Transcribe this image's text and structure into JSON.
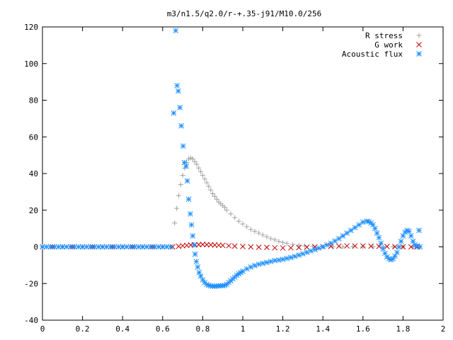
{
  "chart_data": {
    "type": "scatter",
    "title": "m3/n1.5/q2.0/r-+.35-j91/M10.0/256",
    "xlabel": "",
    "ylabel": "",
    "xlim": [
      0,
      2
    ],
    "ylim": [
      -40,
      120
    ],
    "x_ticks": [
      "0",
      "0.2",
      "0.4",
      "0.6",
      "0.8",
      "1",
      "1.2",
      "1.4",
      "1.6",
      "1.8",
      "2"
    ],
    "y_ticks": [
      "-40",
      "-20",
      "0",
      "20",
      "40",
      "60",
      "80",
      "100",
      "120"
    ],
    "legend_position": "top-right",
    "grid": false,
    "series": [
      {
        "name": "R stress",
        "marker": "+",
        "color": "#a0a0a0",
        "points": [
          [
            0.0,
            0
          ],
          [
            0.05,
            0
          ],
          [
            0.1,
            0
          ],
          [
            0.15,
            0
          ],
          [
            0.2,
            0
          ],
          [
            0.25,
            0
          ],
          [
            0.3,
            0
          ],
          [
            0.35,
            0
          ],
          [
            0.4,
            0
          ],
          [
            0.45,
            0
          ],
          [
            0.5,
            0
          ],
          [
            0.55,
            0
          ],
          [
            0.6,
            0
          ],
          [
            0.64,
            0
          ],
          [
            0.66,
            13
          ],
          [
            0.67,
            21
          ],
          [
            0.68,
            28
          ],
          [
            0.69,
            34
          ],
          [
            0.7,
            39
          ],
          [
            0.71,
            43
          ],
          [
            0.72,
            46
          ],
          [
            0.73,
            48
          ],
          [
            0.74,
            48.5
          ],
          [
            0.75,
            48
          ],
          [
            0.76,
            46.5
          ],
          [
            0.77,
            45
          ],
          [
            0.78,
            43
          ],
          [
            0.79,
            41
          ],
          [
            0.8,
            39
          ],
          [
            0.81,
            37
          ],
          [
            0.82,
            35
          ],
          [
            0.83,
            33
          ],
          [
            0.84,
            31
          ],
          [
            0.85,
            29
          ],
          [
            0.86,
            27.5
          ],
          [
            0.87,
            26
          ],
          [
            0.88,
            24.5
          ],
          [
            0.89,
            23.5
          ],
          [
            0.9,
            22.5
          ],
          [
            0.91,
            21.5
          ],
          [
            0.92,
            20
          ],
          [
            0.94,
            18
          ],
          [
            0.96,
            16
          ],
          [
            0.98,
            14
          ],
          [
            1.0,
            12.5
          ],
          [
            1.02,
            11
          ],
          [
            1.04,
            9.5
          ],
          [
            1.06,
            8.5
          ],
          [
            1.08,
            7.5
          ],
          [
            1.1,
            6.5
          ],
          [
            1.12,
            5.5
          ],
          [
            1.14,
            4.5
          ],
          [
            1.16,
            3.8
          ],
          [
            1.18,
            3
          ],
          [
            1.2,
            2.4
          ],
          [
            1.22,
            1.9
          ],
          [
            1.25,
            1.3
          ],
          [
            1.28,
            0.9
          ],
          [
            1.31,
            0.6
          ],
          [
            1.35,
            0.3
          ],
          [
            1.4,
            0.1
          ],
          [
            1.45,
            0
          ],
          [
            1.5,
            0
          ],
          [
            1.55,
            0
          ],
          [
            1.6,
            0
          ],
          [
            1.65,
            0
          ],
          [
            1.7,
            0
          ],
          [
            1.75,
            0
          ],
          [
            1.8,
            0
          ],
          [
            1.85,
            0
          ],
          [
            1.87,
            0
          ]
        ]
      },
      {
        "name": "G work",
        "marker": "x",
        "color": "#c00000",
        "points": [
          [
            0.0,
            0
          ],
          [
            0.05,
            0
          ],
          [
            0.1,
            0
          ],
          [
            0.15,
            0
          ],
          [
            0.2,
            0
          ],
          [
            0.25,
            0
          ],
          [
            0.3,
            0
          ],
          [
            0.35,
            0
          ],
          [
            0.4,
            0
          ],
          [
            0.45,
            0
          ],
          [
            0.5,
            0
          ],
          [
            0.55,
            0
          ],
          [
            0.6,
            0
          ],
          [
            0.65,
            0
          ],
          [
            0.68,
            0.3
          ],
          [
            0.7,
            0.6
          ],
          [
            0.72,
            0.8
          ],
          [
            0.74,
            1
          ],
          [
            0.76,
            1.1
          ],
          [
            0.78,
            1.2
          ],
          [
            0.8,
            1.3
          ],
          [
            0.82,
            1.2
          ],
          [
            0.84,
            1.1
          ],
          [
            0.86,
            1
          ],
          [
            0.88,
            0.9
          ],
          [
            0.9,
            0.8
          ],
          [
            0.93,
            0.6
          ],
          [
            0.96,
            0.4
          ],
          [
            1.0,
            0.2
          ],
          [
            1.04,
            0
          ],
          [
            1.08,
            -0.2
          ],
          [
            1.12,
            -0.3
          ],
          [
            1.16,
            -0.5
          ],
          [
            1.2,
            -0.6
          ],
          [
            1.24,
            -0.5
          ],
          [
            1.28,
            -0.4
          ],
          [
            1.32,
            -0.2
          ],
          [
            1.36,
            0
          ],
          [
            1.4,
            0.1
          ],
          [
            1.44,
            0.3
          ],
          [
            1.48,
            0.4
          ],
          [
            1.52,
            0.5
          ],
          [
            1.56,
            0.5
          ],
          [
            1.6,
            0.5
          ],
          [
            1.64,
            0.4
          ],
          [
            1.68,
            0.3
          ],
          [
            1.72,
            0.2
          ],
          [
            1.76,
            0.1
          ],
          [
            1.8,
            0
          ],
          [
            1.84,
            0
          ],
          [
            1.87,
            0
          ]
        ]
      },
      {
        "name": "Acoustic flux",
        "marker": "*",
        "color": "#1e90ff",
        "points": [
          [
            0.0,
            0
          ],
          [
            0.02,
            0
          ],
          [
            0.04,
            0
          ],
          [
            0.06,
            0
          ],
          [
            0.08,
            0
          ],
          [
            0.1,
            0
          ],
          [
            0.12,
            0
          ],
          [
            0.14,
            0
          ],
          [
            0.16,
            0
          ],
          [
            0.18,
            0
          ],
          [
            0.2,
            0
          ],
          [
            0.22,
            0
          ],
          [
            0.24,
            0
          ],
          [
            0.26,
            0
          ],
          [
            0.28,
            0
          ],
          [
            0.3,
            0
          ],
          [
            0.32,
            0
          ],
          [
            0.34,
            0
          ],
          [
            0.36,
            0
          ],
          [
            0.38,
            0
          ],
          [
            0.4,
            0
          ],
          [
            0.42,
            0
          ],
          [
            0.44,
            0
          ],
          [
            0.46,
            0
          ],
          [
            0.48,
            0
          ],
          [
            0.5,
            0
          ],
          [
            0.52,
            0
          ],
          [
            0.54,
            0
          ],
          [
            0.56,
            0
          ],
          [
            0.58,
            0
          ],
          [
            0.6,
            0
          ],
          [
            0.62,
            0
          ],
          [
            0.64,
            0
          ],
          [
            0.655,
            73
          ],
          [
            0.665,
            118
          ],
          [
            0.672,
            88
          ],
          [
            0.678,
            85
          ],
          [
            0.686,
            76
          ],
          [
            0.693,
            66
          ],
          [
            0.702,
            55
          ],
          [
            0.709,
            46
          ],
          [
            0.717,
            44
          ],
          [
            0.723,
            36
          ],
          [
            0.73,
            26
          ],
          [
            0.738,
            18
          ],
          [
            0.744,
            12
          ],
          [
            0.75,
            6
          ],
          [
            0.757,
            1
          ],
          [
            0.762,
            -4
          ],
          [
            0.768,
            -8
          ],
          [
            0.775,
            -11
          ],
          [
            0.782,
            -14
          ],
          [
            0.79,
            -16
          ],
          [
            0.8,
            -18
          ],
          [
            0.81,
            -19.5
          ],
          [
            0.82,
            -20.5
          ],
          [
            0.83,
            -21
          ],
          [
            0.84,
            -21.3
          ],
          [
            0.85,
            -21.5
          ],
          [
            0.86,
            -21.5
          ],
          [
            0.87,
            -21.4
          ],
          [
            0.88,
            -21.3
          ],
          [
            0.89,
            -21.2
          ],
          [
            0.9,
            -21.2
          ],
          [
            0.91,
            -21
          ],
          [
            0.92,
            -20.5
          ],
          [
            0.93,
            -19.5
          ],
          [
            0.94,
            -18.5
          ],
          [
            0.95,
            -17.5
          ],
          [
            0.96,
            -16.5
          ],
          [
            0.97,
            -15.5
          ],
          [
            0.98,
            -14.7
          ],
          [
            0.99,
            -14
          ],
          [
            1.0,
            -13.3
          ],
          [
            1.02,
            -12
          ],
          [
            1.04,
            -11
          ],
          [
            1.06,
            -10.2
          ],
          [
            1.08,
            -9.5
          ],
          [
            1.1,
            -9
          ],
          [
            1.12,
            -8.5
          ],
          [
            1.14,
            -8
          ],
          [
            1.16,
            -7.5
          ],
          [
            1.18,
            -7.2
          ],
          [
            1.2,
            -6.8
          ],
          [
            1.22,
            -6.3
          ],
          [
            1.24,
            -5.8
          ],
          [
            1.26,
            -5.2
          ],
          [
            1.28,
            -4.5
          ],
          [
            1.3,
            -3.8
          ],
          [
            1.32,
            -3
          ],
          [
            1.34,
            -2.2
          ],
          [
            1.36,
            -1.5
          ],
          [
            1.38,
            -0.7
          ],
          [
            1.4,
            0
          ],
          [
            1.42,
            1
          ],
          [
            1.44,
            2
          ],
          [
            1.46,
            3.2
          ],
          [
            1.48,
            4.5
          ],
          [
            1.5,
            6
          ],
          [
            1.52,
            7.5
          ],
          [
            1.54,
            9
          ],
          [
            1.56,
            10.5
          ],
          [
            1.58,
            12
          ],
          [
            1.6,
            13.5
          ],
          [
            1.62,
            14
          ],
          [
            1.63,
            13.8
          ],
          [
            1.64,
            13
          ],
          [
            1.65,
            12
          ],
          [
            1.66,
            10
          ],
          [
            1.67,
            7.5
          ],
          [
            1.68,
            5
          ],
          [
            1.69,
            2
          ],
          [
            1.7,
            -1
          ],
          [
            1.71,
            -3.5
          ],
          [
            1.72,
            -5.5
          ],
          [
            1.73,
            -6.5
          ],
          [
            1.74,
            -7
          ],
          [
            1.75,
            -6.5
          ],
          [
            1.76,
            -5
          ],
          [
            1.77,
            -3
          ],
          [
            1.78,
            0
          ],
          [
            1.79,
            3
          ],
          [
            1.8,
            6
          ],
          [
            1.81,
            8
          ],
          [
            1.82,
            9
          ],
          [
            1.83,
            8.5
          ],
          [
            1.84,
            6
          ],
          [
            1.85,
            3
          ],
          [
            1.86,
            1
          ],
          [
            1.87,
            0.5
          ],
          [
            1.88,
            9
          ],
          [
            1.885,
            0
          ]
        ]
      }
    ]
  }
}
